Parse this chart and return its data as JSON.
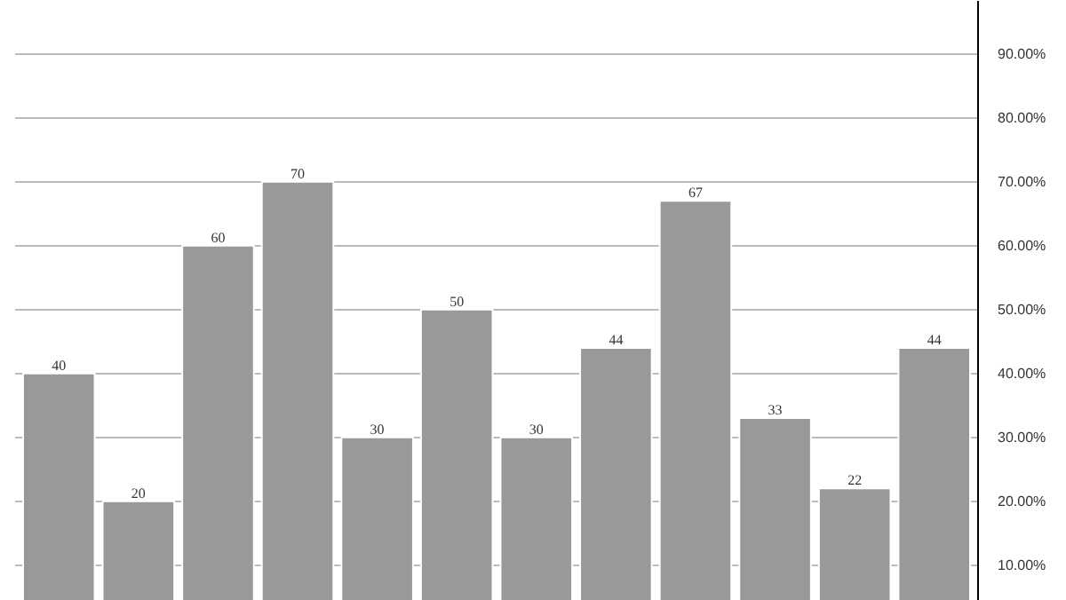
{
  "chart_data": {
    "type": "bar",
    "categories": [
      null,
      null,
      null,
      null,
      null,
      null,
      null,
      null,
      null,
      null,
      null,
      null
    ],
    "values": [
      40,
      20,
      60,
      70,
      30,
      50,
      30,
      44,
      67,
      33,
      22,
      44
    ],
    "color": "#999999",
    "data_labels": true,
    "grid": "y",
    "tick_labels": "y",
    "ylim": [
      4.4,
      98.3
    ],
    "yticks": [
      {
        "value": 10,
        "label": "10.00%"
      },
      {
        "value": 20,
        "label": "20.00%"
      },
      {
        "value": 30,
        "label": "30.00%"
      },
      {
        "value": 40,
        "label": "40.00%"
      },
      {
        "value": 50,
        "label": "50.00%"
      },
      {
        "value": 60,
        "label": "60.00%"
      },
      {
        "value": 70,
        "label": "70.00%"
      },
      {
        "value": 80,
        "label": "80.00%"
      },
      {
        "value": 90,
        "label": "90.00%"
      }
    ]
  }
}
